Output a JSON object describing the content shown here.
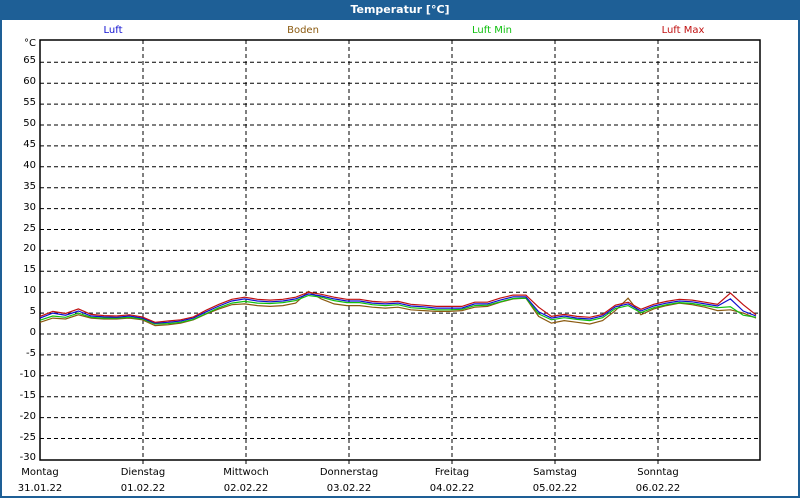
{
  "window": {
    "title": "Temperatur [°C]"
  },
  "legend": [
    {
      "label": "Luft",
      "color": "#1010d0"
    },
    {
      "label": "Boden",
      "color": "#8b5a10"
    },
    {
      "label": "Luft Min",
      "color": "#10c010"
    },
    {
      "label": "Luft Max",
      "color": "#c01010"
    }
  ],
  "y_axis": {
    "unit": "°C",
    "ticks": [
      "65",
      "60",
      "55",
      "50",
      "45",
      "40",
      "35",
      "30",
      "25",
      "20",
      "15",
      "10",
      "5",
      "0",
      "-5",
      "-10",
      "-15",
      "-20",
      "-25",
      "-30"
    ]
  },
  "x_axis": {
    "ticks": [
      {
        "day": "Montag",
        "date": "31.01.22"
      },
      {
        "day": "Dienstag",
        "date": "01.02.22"
      },
      {
        "day": "Mittwoch",
        "date": "02.02.22"
      },
      {
        "day": "Donnerstag",
        "date": "03.02.22"
      },
      {
        "day": "Freitag",
        "date": "04.02.22"
      },
      {
        "day": "Samstag",
        "date": "05.02.22"
      },
      {
        "day": "Sonntag",
        "date": "06.02.22"
      }
    ]
  },
  "chart_data": {
    "type": "line",
    "title": "Temperatur [°C]",
    "xlabel": "",
    "ylabel": "°C",
    "ylim": [
      -30,
      70
    ],
    "yticks_step": 5,
    "grid": true,
    "legend_position": "top",
    "x_categories": [
      "Montag 31.01.22",
      "Dienstag 01.02.22",
      "Mittwoch 02.02.22",
      "Donnerstag 03.02.22",
      "Freitag 04.02.22",
      "Samstag 05.02.22",
      "Sonntag 06.02.22"
    ],
    "x_step_hours": 3,
    "series": [
      {
        "name": "Luft",
        "color": "#1010d0",
        "values": [
          3.8,
          5.0,
          4.5,
          5.5,
          4.3,
          4.1,
          4.0,
          4.3,
          3.8,
          2.6,
          2.8,
          3.1,
          3.8,
          5.3,
          6.7,
          7.9,
          8.4,
          7.9,
          7.7,
          7.9,
          8.4,
          9.6,
          9.1,
          8.4,
          7.9,
          7.9,
          7.4,
          7.2,
          7.4,
          6.7,
          6.5,
          6.2,
          6.2,
          6.2,
          7.2,
          7.2,
          8.1,
          8.9,
          8.9,
          5.3,
          3.8,
          4.3,
          3.8,
          3.6,
          4.3,
          6.5,
          7.2,
          5.5,
          6.7,
          7.4,
          7.9,
          7.7,
          7.2,
          6.7,
          8.4,
          5.5,
          4.3
        ]
      },
      {
        "name": "Boden",
        "color": "#8b5a10",
        "values": [
          2.8,
          3.8,
          3.6,
          4.6,
          3.8,
          3.6,
          3.6,
          3.8,
          3.4,
          2.0,
          2.2,
          2.6,
          3.4,
          4.8,
          6.0,
          7.0,
          7.2,
          6.8,
          6.6,
          6.8,
          7.4,
          10.2,
          8.4,
          7.2,
          6.8,
          6.8,
          6.4,
          6.2,
          6.4,
          5.8,
          5.6,
          5.4,
          5.4,
          5.6,
          6.4,
          6.6,
          7.6,
          8.4,
          8.6,
          4.2,
          2.6,
          3.2,
          2.8,
          2.4,
          3.2,
          5.6,
          8.6,
          4.6,
          6.0,
          6.8,
          7.4,
          7.0,
          6.4,
          5.6,
          5.8,
          5.0,
          3.8
        ]
      },
      {
        "name": "Luft Min",
        "color": "#10c010",
        "values": [
          3.3,
          4.3,
          4.0,
          5.0,
          4.0,
          3.8,
          3.8,
          4.0,
          3.6,
          2.4,
          2.5,
          2.8,
          3.5,
          4.9,
          6.3,
          7.4,
          7.8,
          7.4,
          7.3,
          7.5,
          8.0,
          9.2,
          8.8,
          8.0,
          7.5,
          7.5,
          7.0,
          6.8,
          7.0,
          6.3,
          6.1,
          5.8,
          5.8,
          5.9,
          6.8,
          6.9,
          7.7,
          8.5,
          8.6,
          4.8,
          3.4,
          3.9,
          3.5,
          3.2,
          3.9,
          6.1,
          6.8,
          5.1,
          6.3,
          7.0,
          7.5,
          7.3,
          6.8,
          6.3,
          6.5,
          4.5,
          4.0
        ]
      },
      {
        "name": "Luft Max",
        "color": "#c01010",
        "values": [
          4.2,
          5.4,
          4.9,
          6.0,
          4.7,
          4.4,
          4.3,
          4.6,
          4.1,
          2.8,
          3.1,
          3.4,
          4.1,
          5.7,
          7.1,
          8.3,
          8.8,
          8.3,
          8.1,
          8.3,
          8.8,
          10.0,
          9.5,
          8.8,
          8.3,
          8.3,
          7.8,
          7.6,
          7.8,
          7.1,
          6.9,
          6.6,
          6.6,
          6.6,
          7.6,
          7.6,
          8.6,
          9.3,
          9.3,
          6.4,
          4.2,
          4.7,
          4.2,
          4.0,
          4.7,
          6.9,
          7.6,
          5.9,
          7.1,
          7.8,
          8.3,
          8.1,
          7.6,
          7.1,
          9.8,
          7.0,
          4.6
        ]
      }
    ]
  }
}
